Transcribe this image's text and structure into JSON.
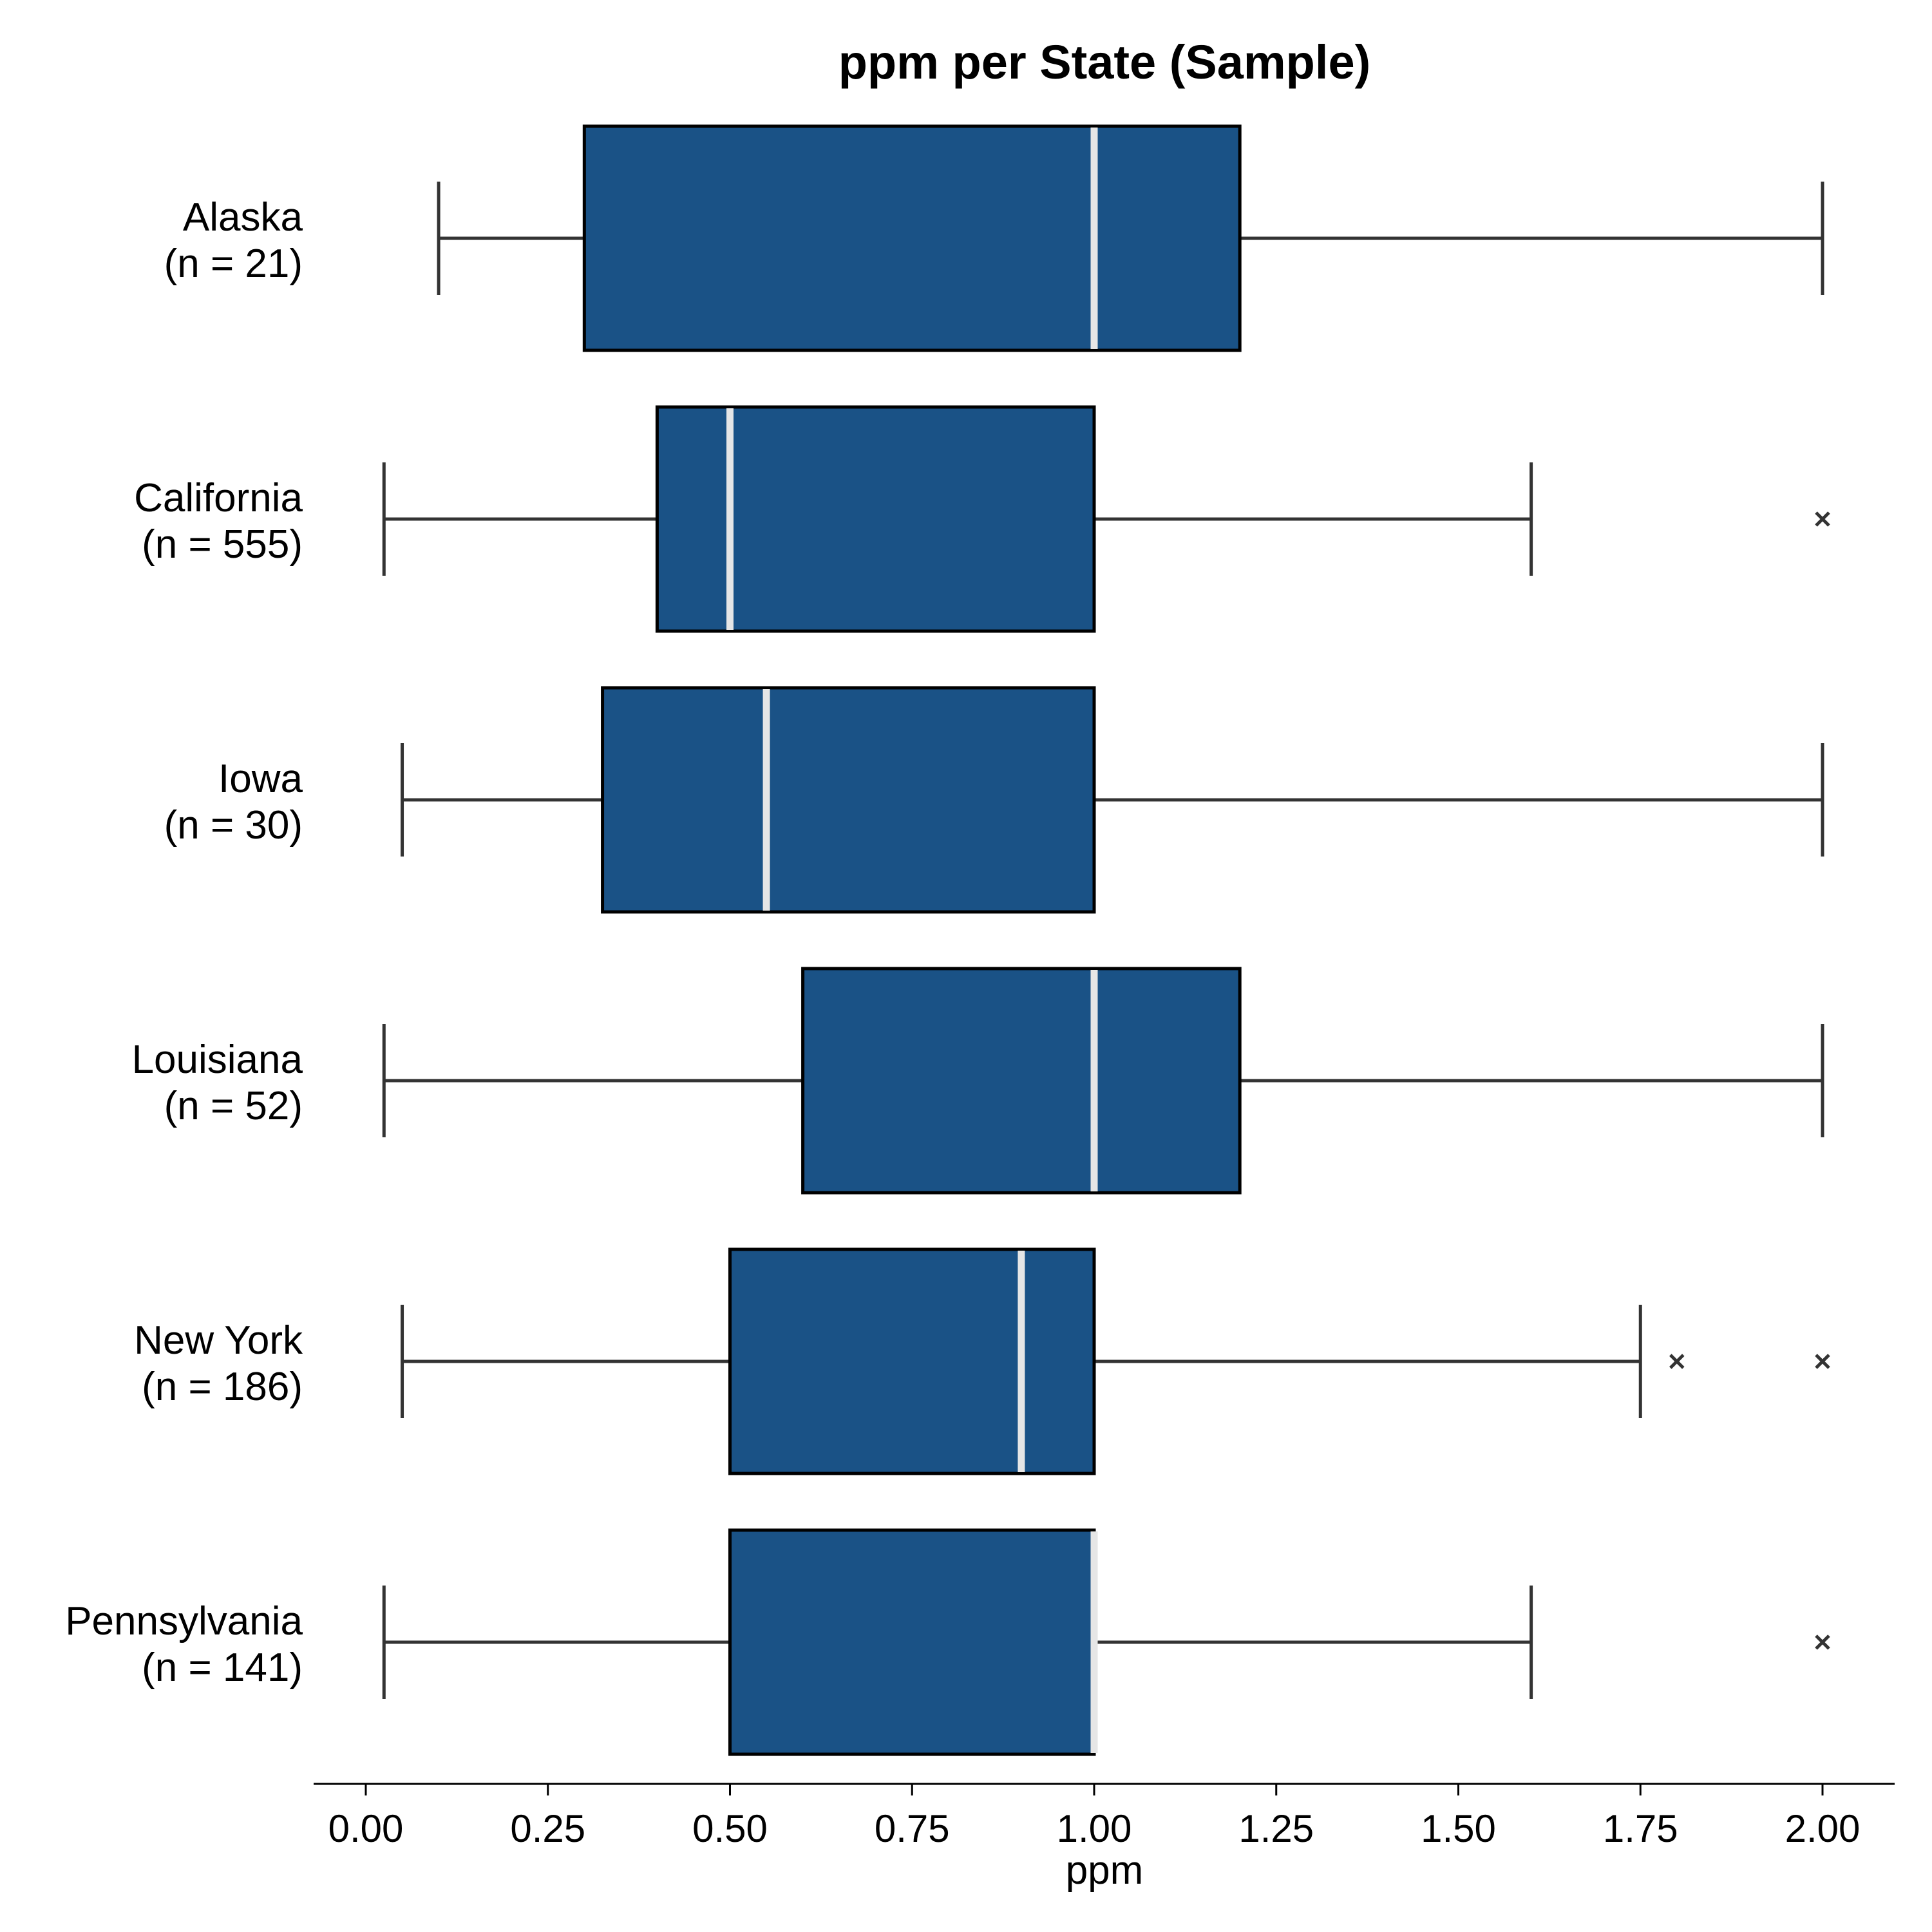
{
  "chart_data": {
    "type": "box",
    "orientation": "horizontal",
    "title": "ppm per State (Sample)",
    "xlabel": "ppm",
    "ylabel": "",
    "xlim": [
      -0.075,
      2.1
    ],
    "xticks": [
      0,
      0.25,
      0.5,
      0.75,
      1.0,
      1.25,
      1.5,
      1.75,
      2.0
    ],
    "xtick_labels": [
      "0.00",
      "0.25",
      "0.50",
      "0.75",
      "1.00",
      "1.25",
      "1.50",
      "1.75",
      "2.00"
    ],
    "grid": false,
    "colors": {
      "box_fill": "#1a5286",
      "box_edge": "#000000",
      "median": "#e6e6e6",
      "whisker": "#333333"
    },
    "series": [
      {
        "state": "Alaska",
        "n_label": "(n = 21)",
        "whisker_low": 0.1,
        "q1": 0.3,
        "median": 1.0,
        "q3": 1.2,
        "whisker_high": 2.0,
        "outliers": []
      },
      {
        "state": "California",
        "n_label": "(n = 555)",
        "whisker_low": 0.025,
        "q1": 0.4,
        "median": 0.5,
        "q3": 1.0,
        "whisker_high": 1.6,
        "outliers": [
          2.0
        ]
      },
      {
        "state": "Iowa",
        "n_label": "(n = 30)",
        "whisker_low": 0.05,
        "q1": 0.325,
        "median": 0.55,
        "q3": 1.0,
        "whisker_high": 2.0,
        "outliers": []
      },
      {
        "state": "Louisiana",
        "n_label": "(n = 52)",
        "whisker_low": 0.025,
        "q1": 0.6,
        "median": 1.0,
        "q3": 1.2,
        "whisker_high": 2.0,
        "outliers": []
      },
      {
        "state": "New York",
        "n_label": "(n = 186)",
        "whisker_low": 0.05,
        "q1": 0.5,
        "median": 0.9,
        "q3": 1.0,
        "whisker_high": 1.75,
        "outliers": [
          1.8,
          2.0
        ]
      },
      {
        "state": "Pennsylvania",
        "n_label": "(n = 141)",
        "whisker_low": 0.025,
        "q1": 0.5,
        "median": 1.0,
        "q3": 1.0,
        "whisker_high": 1.6,
        "outliers": [
          2.0
        ]
      }
    ]
  }
}
